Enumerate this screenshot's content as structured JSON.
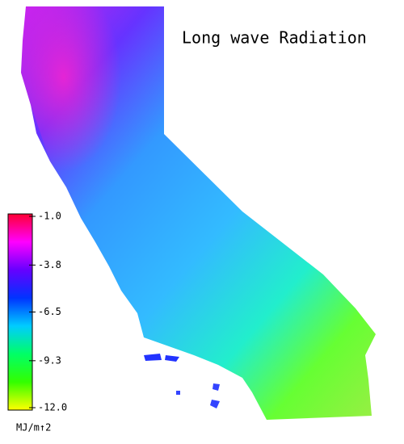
{
  "title": "Long wave Radiation",
  "colorbar": {
    "label": "MJ/m↑2",
    "range": [
      -12,
      -1
    ],
    "ticks": [
      {
        "value": -1,
        "label": "-1.0"
      },
      -3.8,
      -6.5,
      -9.3,
      {
        "value": -12,
        "label": "-12.0"
      }
    ],
    "colors": [
      "#ff0033",
      "#ff00ff",
      "#6600ff",
      "#0033ff",
      "#00ccff",
      "#00ff66",
      "#33ff00",
      "#ffff00"
    ]
  }
}
